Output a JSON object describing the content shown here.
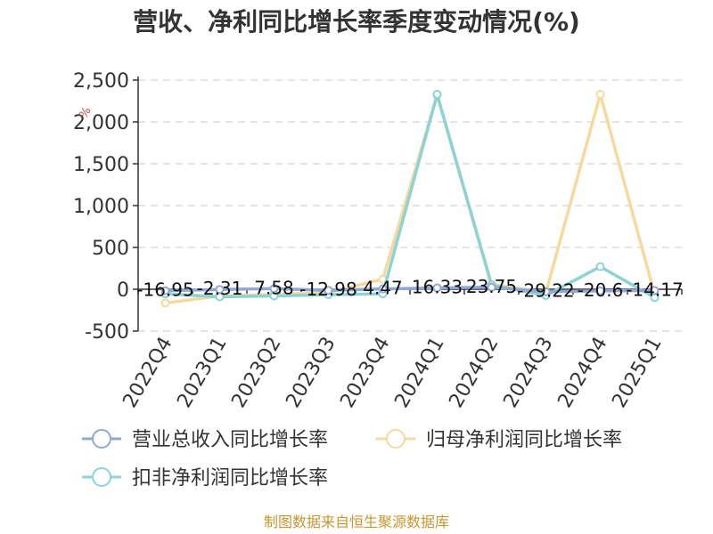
{
  "chart_data": {
    "type": "line",
    "title": "营收、净利同比增长率季度变动情况(%)",
    "categories": [
      "2022Q4",
      "2023Q1",
      "2023Q2",
      "2023Q3",
      "2023Q4",
      "2024Q1",
      "2024Q2",
      "2024Q3",
      "2024Q4",
      "2025Q1"
    ],
    "yticks": [
      "2,500",
      "2,000",
      "1,500",
      "1,000",
      "500",
      "0",
      "-500"
    ],
    "ylim": [
      -500,
      2500
    ],
    "grid": true,
    "legend_position": "bottom",
    "series": [
      {
        "name": "营业总收入同比增长率",
        "color": "#8fa9d4",
        "values": [
          -16.95,
          -2.31,
          7.58,
          -12.98,
          4.47,
          16.33,
          23.75,
          -29.22,
          -20.6,
          -14.17
        ],
        "labels": [
          "-16.95",
          "-2.31",
          "7.58",
          "-12.98",
          "4.47",
          "16.33",
          "23.75",
          "-29.22",
          "-20.6",
          "-14.17"
        ]
      },
      {
        "name": "归母净利润同比增长率",
        "color": "#f7d9a0",
        "values": [
          -165,
          -80,
          -60,
          -40,
          120,
          2320,
          60,
          -40,
          2330,
          -60
        ]
      },
      {
        "name": "扣非净利润同比增长率",
        "color": "#8dd3d3",
        "values": [
          -55,
          -90,
          -80,
          -65,
          -55,
          2330,
          50,
          -75,
          270,
          -100
        ]
      }
    ]
  },
  "source": "制图数据来自恒生聚源数据库",
  "watermark": "%"
}
